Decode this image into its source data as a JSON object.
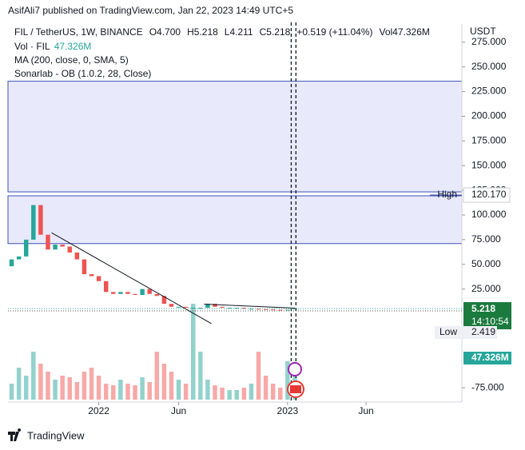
{
  "header": {
    "publisher": "AsifAli7 published on TradingView.com, Jan 22, 2023 14:49 UTC+5",
    "legend": [
      "FIL / TetherUS, 1W, BINANCE",
      "O4.700",
      "H5.218",
      "L4.211",
      "C5.218",
      "+0.519 (+11.04%)",
      "Vol47.326M"
    ],
    "vol_label": "Vol · FIL",
    "vol_value": "47.326M",
    "ma": "MA (200, close, 0, SMA, 5)",
    "ob": "Sonarlab - OB (1.0.2, 28, Close)",
    "currency": "USDT"
  },
  "chart_data": {
    "type": "candlestick",
    "x": [
      -24,
      -22,
      -20,
      -18,
      -16,
      -14,
      -12,
      -10,
      -8,
      -6,
      -4,
      -2,
      0,
      2,
      4,
      6,
      8,
      10,
      12,
      14,
      16,
      18,
      20,
      22,
      24,
      26,
      28,
      30,
      32,
      34,
      36,
      38,
      40,
      42,
      44,
      46,
      48,
      50,
      52,
      54
    ],
    "open": [
      48,
      55,
      58,
      75,
      110,
      80,
      65,
      70,
      68,
      62,
      55,
      40,
      38,
      33,
      22,
      20,
      22,
      20,
      19,
      25,
      20,
      18,
      10,
      7,
      7,
      6,
      6,
      6,
      10,
      7,
      6,
      6,
      6,
      5,
      5,
      4.5,
      4.3,
      4,
      3.5,
      4.7
    ],
    "high": {
      "name": "High",
      "value": 120.17,
      "label": "120.170"
    },
    "low": {
      "name": "Low",
      "value": 2.419
    },
    "close": [
      55,
      58,
      75,
      110,
      80,
      65,
      70,
      68,
      62,
      55,
      40,
      38,
      33,
      22,
      20,
      22,
      20,
      19,
      25,
      20,
      18,
      10,
      7,
      7,
      6,
      6,
      6,
      10,
      7,
      6,
      6,
      6,
      5,
      5,
      4.5,
      4.3,
      4,
      3.5,
      4,
      5.2
    ],
    "volume": [
      20,
      40,
      30,
      60,
      45,
      35,
      25,
      30,
      28,
      22,
      35,
      40,
      30,
      20,
      18,
      25,
      20,
      18,
      28,
      22,
      60,
      45,
      35,
      25,
      20,
      120,
      60,
      25,
      18,
      15,
      12,
      12,
      15,
      20,
      60,
      30,
      20,
      15,
      48,
      47.326
    ],
    "vlim": [
      0,
      130
    ],
    "up_color": "#26a69a",
    "down_color": "#ef5350",
    "xlim": [
      -25,
      100
    ],
    "xticks": [
      {
        "value": 0,
        "label": "2022"
      },
      {
        "value": 22,
        "label": "Jun"
      },
      {
        "value": 52,
        "label": "2023"
      },
      {
        "value": 73.6,
        "label": "Jun"
      }
    ],
    "ylim": [
      -89.5,
      287
    ],
    "yticks": [
      {
        "value": 275,
        "label": "275.000"
      },
      {
        "value": 250,
        "label": "250.000"
      },
      {
        "value": 225,
        "label": "225.000"
      },
      {
        "value": 200,
        "label": "200.000"
      },
      {
        "value": 175,
        "label": "175.000"
      },
      {
        "value": 150,
        "label": "150.000"
      },
      {
        "value": 125,
        "label": "125.000"
      },
      {
        "value": 100,
        "label": "100.000"
      },
      {
        "value": 75,
        "label": "75.000"
      },
      {
        "value": 50,
        "label": "50.000"
      },
      {
        "value": 25,
        "label": "25.000"
      },
      {
        "value": -75,
        "label": "-75.000"
      }
    ],
    "zones": [
      [
        123.4,
        235.5
      ],
      [
        71,
        119.4
      ]
    ],
    "trendlines": [
      [
        [
          -13,
          82
        ],
        [
          31,
          -10
        ]
      ],
      [
        [
          29,
          9.7
        ],
        [
          54,
          5.6
        ]
      ]
    ],
    "current": {
      "value": 5.218,
      "countdown": "14:10:54"
    },
    "volume_last": "47.326M",
    "cursor_x": [
      53,
      54.3
    ]
  },
  "footer": {
    "brand": "TradingView"
  }
}
